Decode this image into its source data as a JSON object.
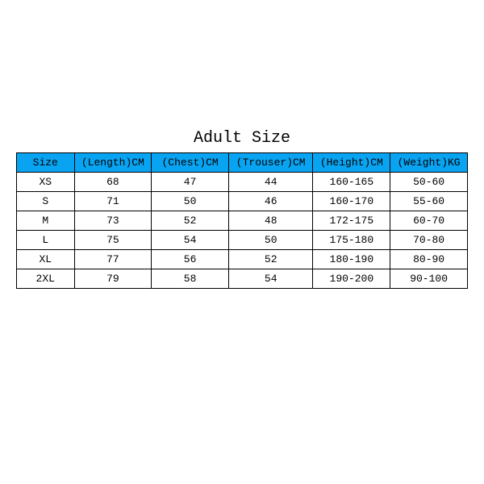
{
  "title": "Adult Size",
  "title_fontsize": 20,
  "table": {
    "type": "table",
    "header_bg": "#08a4f2",
    "header_fg": "#000000",
    "border_color": "#000000",
    "cell_bg": "#ffffff",
    "cell_fg": "#000000",
    "header_fontsize": 13,
    "cell_fontsize": 13,
    "col_widths_pct": [
      13,
      17.4,
      17.4,
      19,
      17.4,
      17.4
    ],
    "columns": [
      "Size",
      "(Length)CM",
      "(Chest)CM",
      "(Trouser)CM",
      "(Height)CM",
      "(Weight)KG"
    ],
    "rows": [
      [
        "XS",
        "68",
        "47",
        "44",
        "160-165",
        "50-60"
      ],
      [
        "S",
        "71",
        "50",
        "46",
        "160-170",
        "55-60"
      ],
      [
        "M",
        "73",
        "52",
        "48",
        "172-175",
        "60-70"
      ],
      [
        "L",
        "75",
        "54",
        "50",
        "175-180",
        "70-80"
      ],
      [
        "XL",
        "77",
        "56",
        "52",
        "180-190",
        "80-90"
      ],
      [
        "2XL",
        "79",
        "58",
        "54",
        "190-200",
        "90-100"
      ]
    ]
  }
}
